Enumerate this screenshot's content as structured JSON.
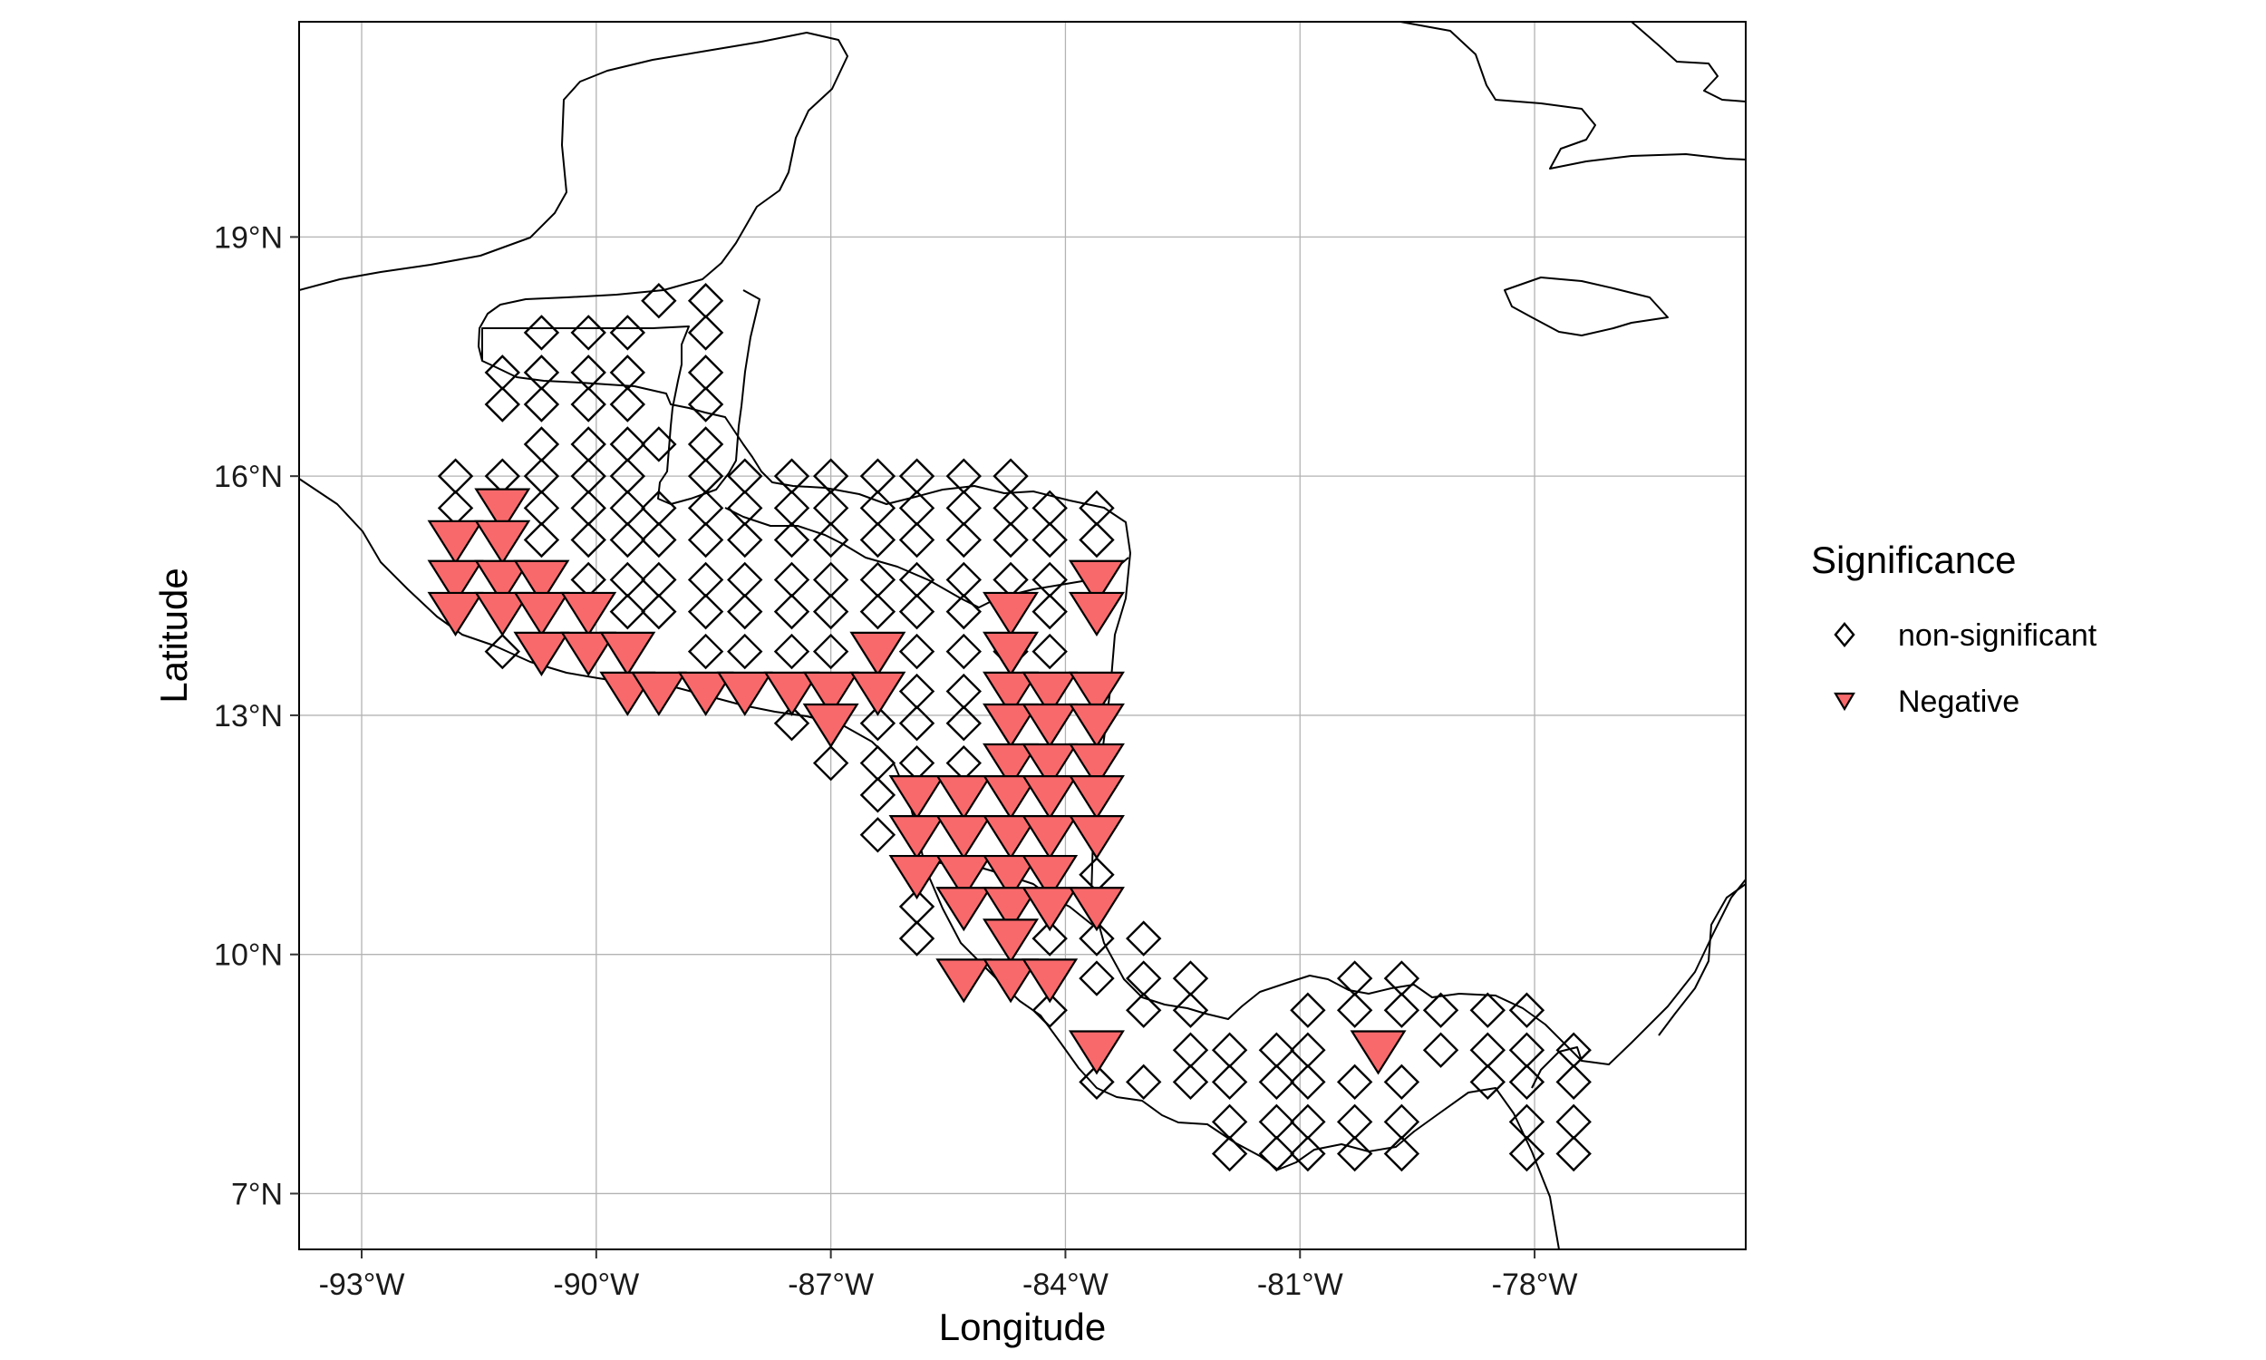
{
  "map": {
    "xlabel": "Longitude",
    "ylabel": "Latitude",
    "extent": {
      "lon": [
        -93.8,
        -75.3
      ],
      "lat": [
        6.3,
        21.7
      ]
    },
    "x_ticks": [
      {
        "value": -93,
        "label": "-93°W"
      },
      {
        "value": -90,
        "label": "-90°W"
      },
      {
        "value": -87,
        "label": "-87°W"
      },
      {
        "value": -84,
        "label": "-84°W"
      },
      {
        "value": -81,
        "label": "-81°W"
      },
      {
        "value": -78,
        "label": "-78°W"
      }
    ],
    "y_ticks": [
      {
        "value": 7,
        "label": "7°N"
      },
      {
        "value": 10,
        "label": "10°N"
      },
      {
        "value": 13,
        "label": "13°N"
      },
      {
        "value": 16,
        "label": "16°N"
      },
      {
        "value": 19,
        "label": "19°N"
      }
    ],
    "grid": true,
    "colors": {
      "negative_fill": "#f8696b",
      "outline": "#000000",
      "grid": "#b3b3b3"
    }
  },
  "legend": {
    "title": "Significance",
    "position": "right",
    "items": [
      {
        "label": "non-significant",
        "shape": "diamond"
      },
      {
        "label": "Negative",
        "shape": "triangle-down"
      }
    ]
  },
  "chart_data": {
    "type": "scatter",
    "title": "",
    "xlabel": "Longitude",
    "ylabel": "Latitude",
    "xlim": [
      -93.8,
      -75.3
    ],
    "ylim": [
      6.3,
      21.7
    ],
    "series": [
      {
        "name": "non-significant",
        "marker": "diamond",
        "points": [
          [
            -89.2,
            18.2
          ],
          [
            -88.6,
            18.2
          ],
          [
            -90.7,
            17.8
          ],
          [
            -90.1,
            17.8
          ],
          [
            -89.6,
            17.8
          ],
          [
            -88.6,
            17.8
          ],
          [
            -91.2,
            17.3
          ],
          [
            -90.7,
            17.3
          ],
          [
            -90.1,
            17.3
          ],
          [
            -89.6,
            17.3
          ],
          [
            -88.6,
            17.3
          ],
          [
            -91.2,
            16.9
          ],
          [
            -90.7,
            16.9
          ],
          [
            -90.1,
            16.9
          ],
          [
            -89.6,
            16.9
          ],
          [
            -88.6,
            16.9
          ],
          [
            -90.7,
            16.4
          ],
          [
            -90.1,
            16.4
          ],
          [
            -89.6,
            16.4
          ],
          [
            -89.2,
            16.4
          ],
          [
            -88.6,
            16.4
          ],
          [
            -91.8,
            16.0
          ],
          [
            -91.2,
            16.0
          ],
          [
            -90.7,
            16.0
          ],
          [
            -90.1,
            16.0
          ],
          [
            -89.6,
            16.0
          ],
          [
            -88.6,
            16.0
          ],
          [
            -88.1,
            16.0
          ],
          [
            -87.5,
            16.0
          ],
          [
            -87.0,
            16.0
          ],
          [
            -86.4,
            16.0
          ],
          [
            -85.9,
            16.0
          ],
          [
            -85.3,
            16.0
          ],
          [
            -84.7,
            16.0
          ],
          [
            -91.8,
            15.6
          ],
          [
            -90.7,
            15.6
          ],
          [
            -90.1,
            15.6
          ],
          [
            -89.6,
            15.6
          ],
          [
            -89.2,
            15.6
          ],
          [
            -88.6,
            15.6
          ],
          [
            -88.1,
            15.6
          ],
          [
            -87.5,
            15.6
          ],
          [
            -87.0,
            15.6
          ],
          [
            -86.4,
            15.6
          ],
          [
            -85.9,
            15.6
          ],
          [
            -85.3,
            15.6
          ],
          [
            -84.7,
            15.6
          ],
          [
            -84.2,
            15.6
          ],
          [
            -83.6,
            15.6
          ],
          [
            -90.7,
            15.2
          ],
          [
            -90.1,
            15.2
          ],
          [
            -89.6,
            15.2
          ],
          [
            -89.2,
            15.2
          ],
          [
            -88.6,
            15.2
          ],
          [
            -88.1,
            15.2
          ],
          [
            -87.5,
            15.2
          ],
          [
            -87.0,
            15.2
          ],
          [
            -86.4,
            15.2
          ],
          [
            -85.9,
            15.2
          ],
          [
            -85.3,
            15.2
          ],
          [
            -84.7,
            15.2
          ],
          [
            -84.2,
            15.2
          ],
          [
            -83.6,
            15.2
          ],
          [
            -90.1,
            14.7
          ],
          [
            -89.6,
            14.7
          ],
          [
            -89.2,
            14.7
          ],
          [
            -88.6,
            14.7
          ],
          [
            -88.1,
            14.7
          ],
          [
            -87.5,
            14.7
          ],
          [
            -87.0,
            14.7
          ],
          [
            -86.4,
            14.7
          ],
          [
            -85.9,
            14.7
          ],
          [
            -85.3,
            14.7
          ],
          [
            -84.7,
            14.7
          ],
          [
            -84.2,
            14.7
          ],
          [
            -89.6,
            14.3
          ],
          [
            -89.2,
            14.3
          ],
          [
            -88.6,
            14.3
          ],
          [
            -88.1,
            14.3
          ],
          [
            -87.5,
            14.3
          ],
          [
            -87.0,
            14.3
          ],
          [
            -86.4,
            14.3
          ],
          [
            -85.9,
            14.3
          ],
          [
            -85.3,
            14.3
          ],
          [
            -84.2,
            14.3
          ],
          [
            -91.2,
            13.8
          ],
          [
            -88.6,
            13.8
          ],
          [
            -88.1,
            13.8
          ],
          [
            -87.5,
            13.8
          ],
          [
            -87.0,
            13.8
          ],
          [
            -85.9,
            13.8
          ],
          [
            -85.3,
            13.8
          ],
          [
            -84.7,
            13.8
          ],
          [
            -84.2,
            13.8
          ],
          [
            -85.9,
            13.3
          ],
          [
            -85.3,
            13.3
          ],
          [
            -87.5,
            12.9
          ],
          [
            -86.4,
            12.9
          ],
          [
            -85.9,
            12.9
          ],
          [
            -85.3,
            12.9
          ],
          [
            -87.0,
            12.4
          ],
          [
            -86.4,
            12.4
          ],
          [
            -85.9,
            12.4
          ],
          [
            -85.3,
            12.4
          ],
          [
            -86.4,
            12.0
          ],
          [
            -86.4,
            11.5
          ],
          [
            -83.6,
            11.0
          ],
          [
            -85.9,
            10.6
          ],
          [
            -85.9,
            10.2
          ],
          [
            -84.2,
            10.2
          ],
          [
            -83.6,
            10.2
          ],
          [
            -83.0,
            10.2
          ],
          [
            -83.6,
            9.7
          ],
          [
            -83.0,
            9.7
          ],
          [
            -82.4,
            9.7
          ],
          [
            -80.3,
            9.7
          ],
          [
            -79.7,
            9.7
          ],
          [
            -84.2,
            9.3
          ],
          [
            -83.0,
            9.3
          ],
          [
            -82.4,
            9.3
          ],
          [
            -80.9,
            9.3
          ],
          [
            -80.3,
            9.3
          ],
          [
            -79.7,
            9.3
          ],
          [
            -79.2,
            9.3
          ],
          [
            -78.6,
            9.3
          ],
          [
            -78.1,
            9.3
          ],
          [
            -82.4,
            8.8
          ],
          [
            -81.9,
            8.8
          ],
          [
            -81.3,
            8.8
          ],
          [
            -80.9,
            8.8
          ],
          [
            -79.2,
            8.8
          ],
          [
            -78.6,
            8.8
          ],
          [
            -78.1,
            8.8
          ],
          [
            -77.5,
            8.8
          ],
          [
            -83.6,
            8.4
          ],
          [
            -83.0,
            8.4
          ],
          [
            -82.4,
            8.4
          ],
          [
            -81.9,
            8.4
          ],
          [
            -81.3,
            8.4
          ],
          [
            -80.9,
            8.4
          ],
          [
            -80.3,
            8.4
          ],
          [
            -79.7,
            8.4
          ],
          [
            -78.6,
            8.4
          ],
          [
            -78.1,
            8.4
          ],
          [
            -77.5,
            8.4
          ],
          [
            -81.9,
            7.9
          ],
          [
            -81.3,
            7.9
          ],
          [
            -80.9,
            7.9
          ],
          [
            -80.3,
            7.9
          ],
          [
            -79.7,
            7.9
          ],
          [
            -78.1,
            7.9
          ],
          [
            -77.5,
            7.9
          ],
          [
            -81.9,
            7.5
          ],
          [
            -81.3,
            7.5
          ],
          [
            -80.9,
            7.5
          ],
          [
            -80.3,
            7.5
          ],
          [
            -79.7,
            7.5
          ],
          [
            -78.1,
            7.5
          ],
          [
            -77.5,
            7.5
          ]
        ]
      },
      {
        "name": "Negative",
        "marker": "triangle-down",
        "points": [
          [
            -91.2,
            15.6
          ],
          [
            -91.8,
            15.2
          ],
          [
            -91.2,
            15.2
          ],
          [
            -91.8,
            14.7
          ],
          [
            -91.2,
            14.7
          ],
          [
            -90.7,
            14.7
          ],
          [
            -83.6,
            14.7
          ],
          [
            -91.8,
            14.3
          ],
          [
            -91.2,
            14.3
          ],
          [
            -90.7,
            14.3
          ],
          [
            -90.1,
            14.3
          ],
          [
            -84.7,
            14.3
          ],
          [
            -83.6,
            14.3
          ],
          [
            -90.7,
            13.8
          ],
          [
            -90.1,
            13.8
          ],
          [
            -89.6,
            13.8
          ],
          [
            -86.4,
            13.8
          ],
          [
            -84.7,
            13.8
          ],
          [
            -89.6,
            13.3
          ],
          [
            -89.2,
            13.3
          ],
          [
            -88.6,
            13.3
          ],
          [
            -88.1,
            13.3
          ],
          [
            -87.5,
            13.3
          ],
          [
            -87.0,
            13.3
          ],
          [
            -86.4,
            13.3
          ],
          [
            -84.7,
            13.3
          ],
          [
            -84.2,
            13.3
          ],
          [
            -83.6,
            13.3
          ],
          [
            -87.0,
            12.9
          ],
          [
            -84.7,
            12.9
          ],
          [
            -84.2,
            12.9
          ],
          [
            -83.6,
            12.9
          ],
          [
            -84.7,
            12.4
          ],
          [
            -84.2,
            12.4
          ],
          [
            -83.6,
            12.4
          ],
          [
            -85.9,
            12.0
          ],
          [
            -85.3,
            12.0
          ],
          [
            -84.7,
            12.0
          ],
          [
            -84.2,
            12.0
          ],
          [
            -83.6,
            12.0
          ],
          [
            -85.9,
            11.5
          ],
          [
            -85.3,
            11.5
          ],
          [
            -84.7,
            11.5
          ],
          [
            -84.2,
            11.5
          ],
          [
            -83.6,
            11.5
          ],
          [
            -85.9,
            11.0
          ],
          [
            -85.3,
            11.0
          ],
          [
            -84.7,
            11.0
          ],
          [
            -84.2,
            11.0
          ],
          [
            -85.3,
            10.6
          ],
          [
            -84.7,
            10.6
          ],
          [
            -84.2,
            10.6
          ],
          [
            -83.6,
            10.6
          ],
          [
            -84.7,
            10.2
          ],
          [
            -85.3,
            9.7
          ],
          [
            -84.7,
            9.7
          ],
          [
            -84.2,
            9.7
          ],
          [
            -83.6,
            8.8
          ],
          [
            -80.0,
            8.8
          ]
        ]
      }
    ]
  }
}
